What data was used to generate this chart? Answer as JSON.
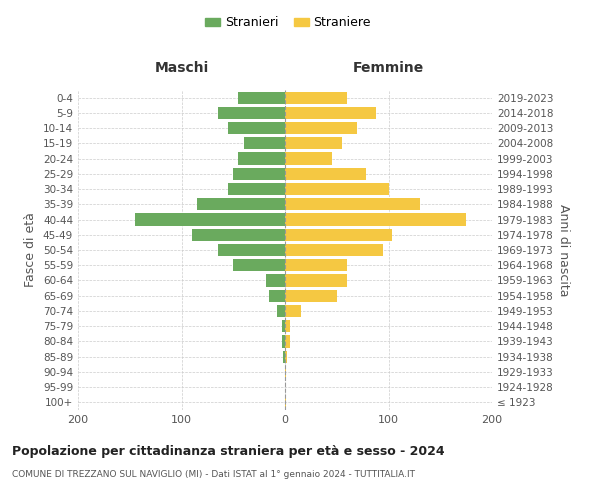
{
  "age_groups": [
    "100+",
    "95-99",
    "90-94",
    "85-89",
    "80-84",
    "75-79",
    "70-74",
    "65-69",
    "60-64",
    "55-59",
    "50-54",
    "45-49",
    "40-44",
    "35-39",
    "30-34",
    "25-29",
    "20-24",
    "15-19",
    "10-14",
    "5-9",
    "0-4"
  ],
  "birth_years": [
    "≤ 1923",
    "1924-1928",
    "1929-1933",
    "1934-1938",
    "1939-1943",
    "1944-1948",
    "1949-1953",
    "1954-1958",
    "1959-1963",
    "1964-1968",
    "1969-1973",
    "1974-1978",
    "1979-1983",
    "1984-1988",
    "1989-1993",
    "1994-1998",
    "1999-2003",
    "2004-2008",
    "2009-2013",
    "2014-2018",
    "2019-2023"
  ],
  "males": [
    0,
    0,
    0,
    2,
    3,
    3,
    8,
    15,
    18,
    50,
    65,
    90,
    145,
    85,
    55,
    50,
    45,
    40,
    55,
    65,
    45
  ],
  "females": [
    1,
    0,
    1,
    2,
    5,
    5,
    15,
    50,
    60,
    60,
    95,
    103,
    175,
    130,
    100,
    78,
    45,
    55,
    70,
    88,
    60
  ],
  "male_color": "#6aaa5e",
  "female_color": "#f5c842",
  "background_color": "#ffffff",
  "grid_color": "#cccccc",
  "title": "Popolazione per cittadinanza straniera per età e sesso - 2024",
  "subtitle": "COMUNE DI TREZZANO SUL NAVIGLIO (MI) - Dati ISTAT al 1° gennaio 2024 - TUTTITALIA.IT",
  "left_label": "Maschi",
  "right_label": "Femmine",
  "ylabel": "Fasce di età",
  "right_ylabel": "Anni di nascita",
  "legend_male": "Stranieri",
  "legend_female": "Straniere",
  "xlim": 200,
  "bar_height": 0.8
}
